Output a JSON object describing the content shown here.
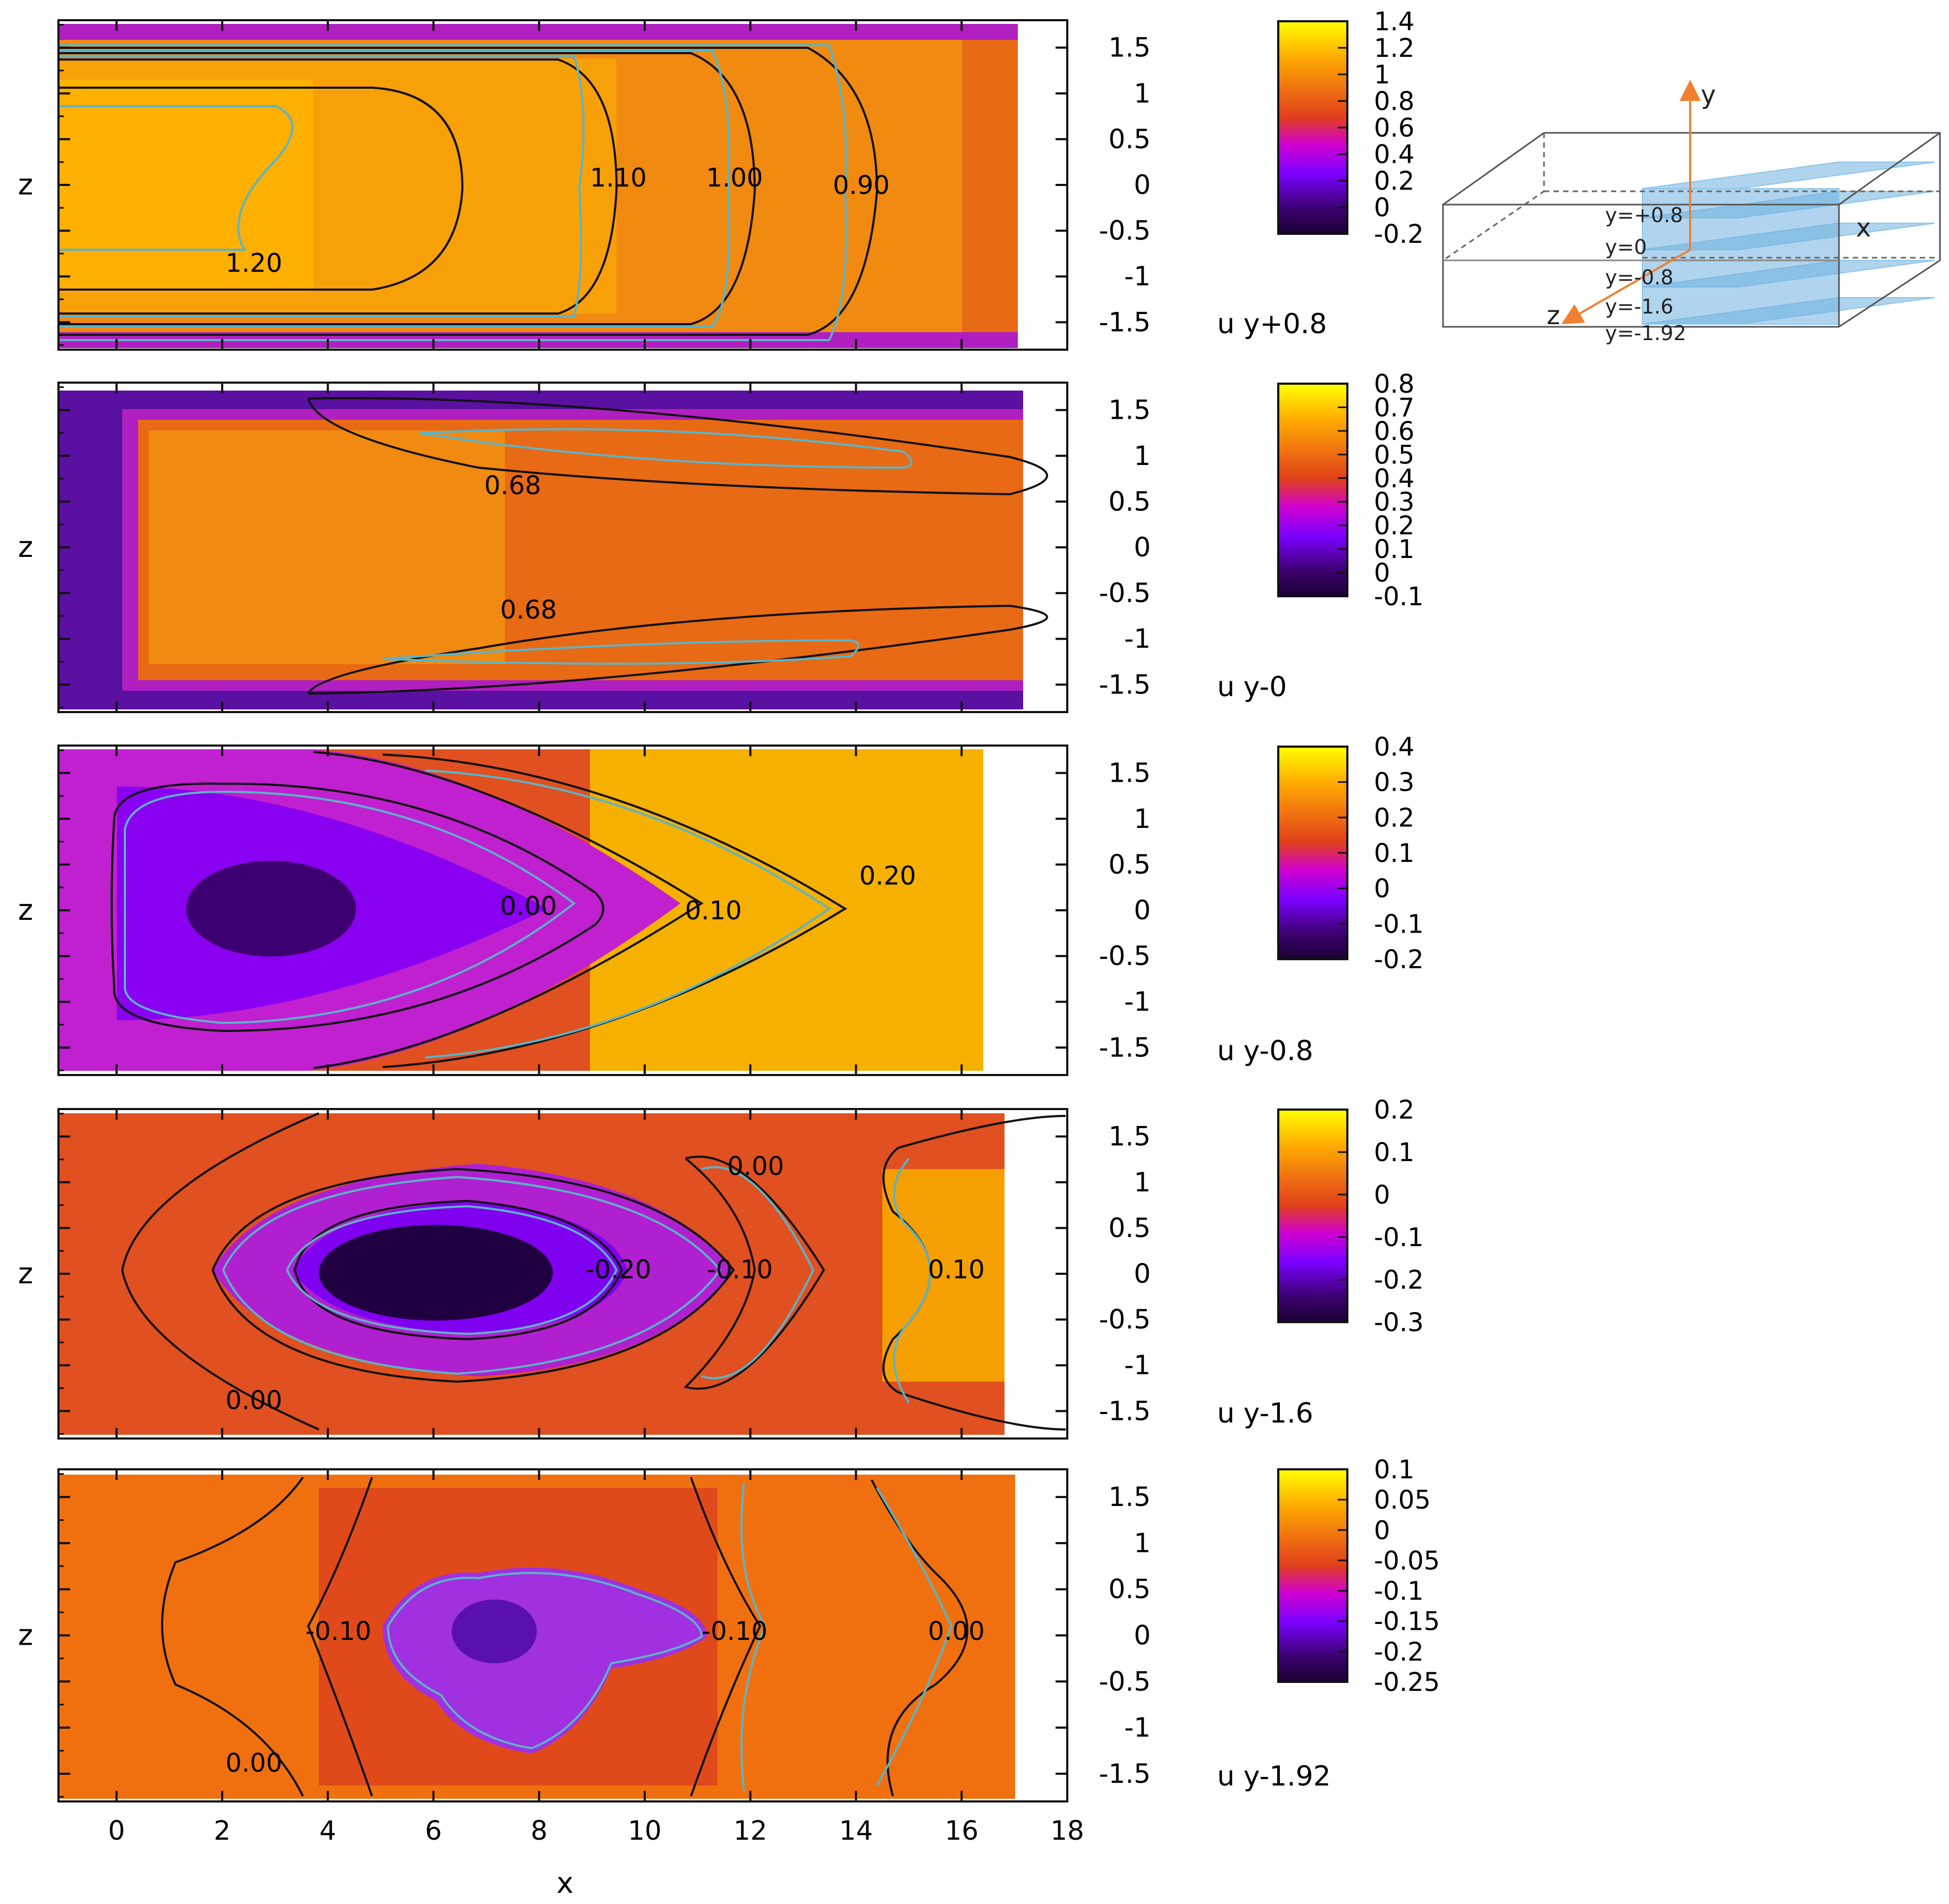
{
  "colors": {
    "colormap": [
      "#1a0033",
      "#3d0070",
      "#7a00ff",
      "#d000d0",
      "#e0401a",
      "#f07010",
      "#ffb000",
      "#ffff00"
    ],
    "contour_black": "#111111",
    "contour_cyan": "#5ab4c8",
    "axis_arrow": "#f08030",
    "slab_fill": "#6fb0e0"
  },
  "figure": {
    "xlabel": "x",
    "zlabel": "z",
    "x_ticks": [
      0,
      2,
      4,
      6,
      8,
      10,
      12,
      14,
      16,
      18
    ],
    "z_ticks": [
      1.5,
      1,
      0.5,
      0,
      -0.5,
      -1,
      -1.5
    ],
    "x_range": [
      -1.1,
      18
    ],
    "z_range": [
      -1.8,
      1.8
    ]
  },
  "chart_data": [
    {
      "type": "heatmap",
      "title": "u   y+0.8",
      "variable": "u",
      "slice": "y+0.8",
      "colorbar_ticks": [
        "1.4",
        "1.2",
        "1",
        "0.8",
        "0.6",
        "0.4",
        "0.2",
        "0",
        "-0.2"
      ],
      "colorbar_range": [
        -0.2,
        1.4
      ],
      "contour_labels": [
        {
          "text": "1.10",
          "x": 9.5,
          "z": 0.08
        },
        {
          "text": "1.00",
          "x": 11.7,
          "z": 0.08
        },
        {
          "text": "0.90",
          "x": 14.1,
          "z": 0.0
        },
        {
          "text": "1.20",
          "x": 2.6,
          "z": -0.85
        }
      ]
    },
    {
      "type": "heatmap",
      "title": "u   y-0",
      "variable": "u",
      "slice": "y-0",
      "colorbar_ticks": [
        "0.8",
        "0.7",
        "0.6",
        "0.5",
        "0.4",
        "0.3",
        "0.2",
        "0.1",
        "0",
        "-0.1"
      ],
      "colorbar_range": [
        -0.1,
        0.8
      ],
      "contour_labels": [
        {
          "text": "0.68",
          "x": 7.5,
          "z": 0.68
        },
        {
          "text": "0.68",
          "x": 7.8,
          "z": -0.68
        }
      ]
    },
    {
      "type": "heatmap",
      "title": "u   y-0.8",
      "variable": "u",
      "slice": "y-0.8",
      "colorbar_ticks": [
        "0.4",
        "0.3",
        "0.2",
        "0.1",
        "0",
        "-0.1",
        "-0.2"
      ],
      "colorbar_range": [
        -0.2,
        0.4
      ],
      "contour_labels": [
        {
          "text": "0.00",
          "x": 7.8,
          "z": 0.05
        },
        {
          "text": "0.10",
          "x": 11.3,
          "z": 0.0
        },
        {
          "text": "0.20",
          "x": 14.6,
          "z": 0.38
        }
      ]
    },
    {
      "type": "heatmap",
      "title": "u   y-1.6",
      "variable": "u",
      "slice": "y-1.6",
      "colorbar_ticks": [
        "0.2",
        "0.1",
        "0",
        "-0.1",
        "-0.2",
        "-0.3"
      ],
      "colorbar_range": [
        -0.3,
        0.2
      ],
      "contour_labels": [
        {
          "text": "0.00",
          "x": 12.1,
          "z": 1.18
        },
        {
          "text": "-0.20",
          "x": 9.5,
          "z": 0.05
        },
        {
          "text": "-0.10",
          "x": 11.8,
          "z": 0.05
        },
        {
          "text": "0.10",
          "x": 15.9,
          "z": 0.05
        },
        {
          "text": "0.00",
          "x": 2.6,
          "z": -1.38
        }
      ]
    },
    {
      "type": "heatmap",
      "title": "u   y-1.92",
      "variable": "u",
      "slice": "y-1.92",
      "colorbar_ticks": [
        "0.1",
        "0.05",
        "0",
        "-0.05",
        "-0.1",
        "-0.15",
        "-0.2",
        "-0.25"
      ],
      "colorbar_range": [
        -0.25,
        0.1
      ],
      "contour_labels": [
        {
          "text": "-0.10",
          "x": 4.2,
          "z": 0.05
        },
        {
          "text": "-0.10",
          "x": 11.7,
          "z": 0.05
        },
        {
          "text": "0.00",
          "x": 15.9,
          "z": 0.05
        },
        {
          "text": "0.00",
          "x": 2.6,
          "z": -1.38
        }
      ]
    }
  ],
  "diagram": {
    "axis_y": "y",
    "axis_x": "x",
    "axis_z": "z",
    "plane_labels": [
      "y=+0.8",
      "y=0",
      "y=-0.8",
      "y=-1.6",
      "y=-1.92"
    ]
  }
}
